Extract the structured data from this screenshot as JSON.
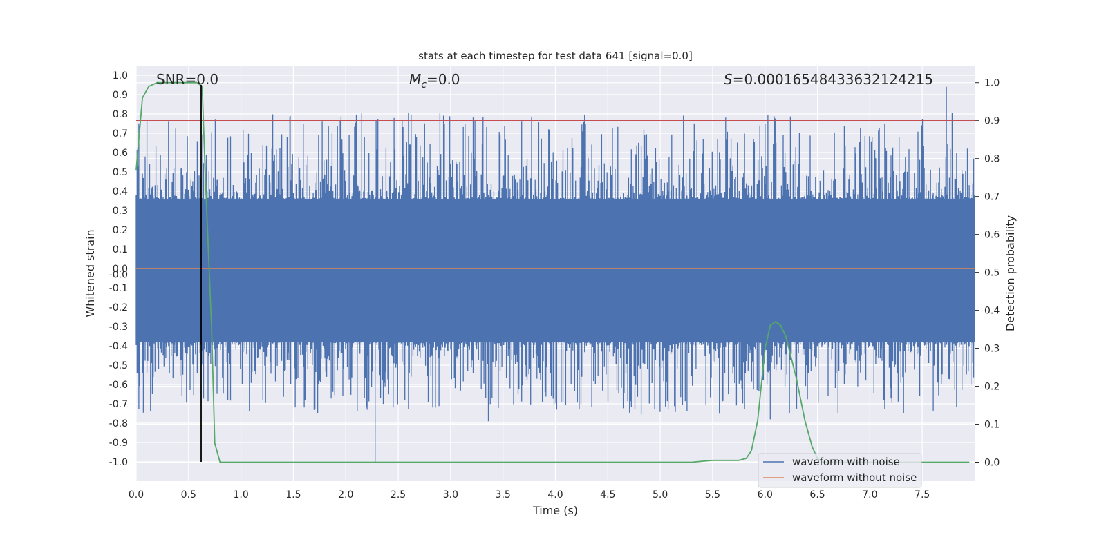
{
  "chart_data": {
    "type": "line",
    "title": "stats at each timestep for test data 641 [signal=0.0]",
    "xlabel": "Time (s)",
    "ylabel": "Whitened strain",
    "y2label": "Detection probability",
    "xlim": [
      0.0,
      8.0
    ],
    "ylim": [
      -1.1,
      1.05
    ],
    "y2lim": [
      -0.05,
      1.045
    ],
    "xticks": [
      "0.0",
      "0.5",
      "1.0",
      "1.5",
      "2.0",
      "2.5",
      "3.0",
      "3.5",
      "4.0",
      "4.5",
      "5.0",
      "5.5",
      "6.0",
      "6.5",
      "7.0",
      "7.5"
    ],
    "yticks": [
      "1.0",
      "0.9",
      "0.8",
      "0.7",
      "0.6",
      "0.5",
      "0.4",
      "0.3",
      "0.2",
      "0.1",
      "0.0",
      "-0.0",
      "-0.1",
      "-0.2",
      "-0.3",
      "-0.4",
      "-0.5",
      "-0.6",
      "-0.7",
      "-0.8",
      "-0.9",
      "-1.0"
    ],
    "y2ticks": [
      "1.0",
      "0.9",
      "0.8",
      "0.7",
      "0.6",
      "0.5",
      "0.4",
      "0.3",
      "0.2",
      "0.1",
      "0.0"
    ],
    "annotations": {
      "snr": "SNR=0.0",
      "mc_symbol": "M",
      "mc_subscript": "c",
      "mc_value": "=0.0",
      "s_symbol": "S",
      "s_value": "=0.00016548433632124215"
    },
    "legend": {
      "position": "lower-right",
      "entries": [
        {
          "label": "waveform with noise",
          "color": "#4c72b0"
        },
        {
          "label": "waveform without noise",
          "color": "#dd8452"
        }
      ]
    },
    "series": [
      {
        "name": "waveform with noise",
        "color": "#4c72b0",
        "noise_profile": {
          "typical_upper": 0.36,
          "typical_lower": -0.38,
          "max_peak": 0.94,
          "min_peak": -1.0
        }
      },
      {
        "name": "waveform without noise",
        "color": "#dd8452",
        "y": 0.0
      },
      {
        "name": "detection probability",
        "color": "#55a868",
        "axis": "right",
        "x": [
          0.0,
          0.06,
          0.12,
          0.2,
          0.3,
          0.45,
          0.58,
          0.63,
          0.66,
          0.72,
          0.75,
          0.8,
          0.85,
          1.0,
          2.0,
          3.0,
          4.0,
          5.0,
          5.3,
          5.5,
          5.75,
          5.82,
          5.87,
          5.93,
          6.0,
          6.05,
          6.1,
          6.15,
          6.2,
          6.3,
          6.38,
          6.45,
          6.5,
          6.55,
          7.0,
          7.5,
          7.95
        ],
        "y": [
          0.77,
          0.96,
          0.99,
          1.0,
          1.0,
          1.0,
          1.0,
          0.99,
          0.75,
          0.35,
          0.05,
          0.0,
          0.0,
          0.0,
          0.0,
          0.0,
          0.0,
          0.0,
          0.0,
          0.005,
          0.005,
          0.01,
          0.03,
          0.11,
          0.3,
          0.36,
          0.37,
          0.36,
          0.33,
          0.22,
          0.11,
          0.04,
          0.01,
          0.0,
          0.0,
          0.0,
          0.0
        ]
      },
      {
        "name": "threshold",
        "color": "#c44e52",
        "axis": "right",
        "y": 0.9
      },
      {
        "name": "marker",
        "color": "#000000",
        "x": 0.62,
        "y_range": [
          -1.0,
          0.95
        ]
      }
    ]
  }
}
